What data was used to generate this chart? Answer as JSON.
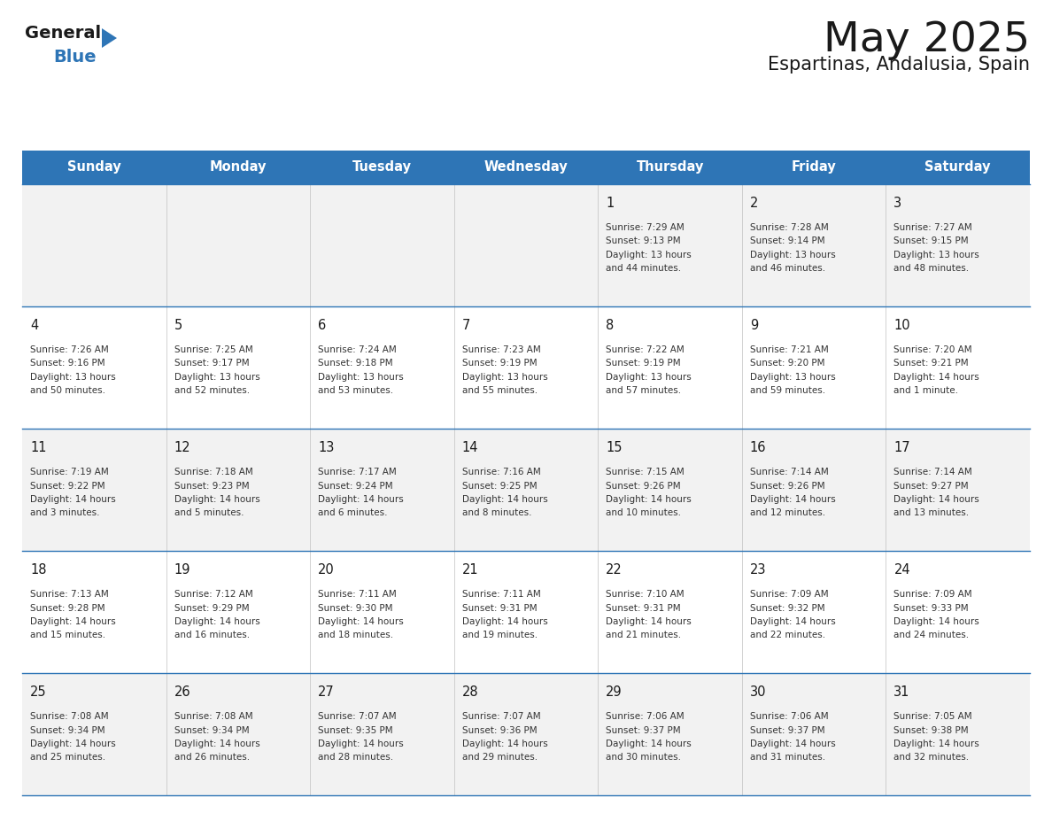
{
  "title": "May 2025",
  "subtitle": "Espartinas, Andalusia, Spain",
  "header_bg": "#2E75B6",
  "header_text": "#FFFFFF",
  "header_days": [
    "Sunday",
    "Monday",
    "Tuesday",
    "Wednesday",
    "Thursday",
    "Friday",
    "Saturday"
  ],
  "row_bg_even": "#F2F2F2",
  "row_bg_odd": "#FFFFFF",
  "cell_border": "#CCCCCC",
  "day_number_color": "#1a1a1a",
  "info_text_color": "#333333",
  "calendar_data": [
    [
      null,
      null,
      null,
      null,
      {
        "day": 1,
        "sunrise": "7:29 AM",
        "sunset": "9:13 PM",
        "daylight": "13 hours and 44 minutes."
      },
      {
        "day": 2,
        "sunrise": "7:28 AM",
        "sunset": "9:14 PM",
        "daylight": "13 hours and 46 minutes."
      },
      {
        "day": 3,
        "sunrise": "7:27 AM",
        "sunset": "9:15 PM",
        "daylight": "13 hours and 48 minutes."
      }
    ],
    [
      {
        "day": 4,
        "sunrise": "7:26 AM",
        "sunset": "9:16 PM",
        "daylight": "13 hours and 50 minutes."
      },
      {
        "day": 5,
        "sunrise": "7:25 AM",
        "sunset": "9:17 PM",
        "daylight": "13 hours and 52 minutes."
      },
      {
        "day": 6,
        "sunrise": "7:24 AM",
        "sunset": "9:18 PM",
        "daylight": "13 hours and 53 minutes."
      },
      {
        "day": 7,
        "sunrise": "7:23 AM",
        "sunset": "9:19 PM",
        "daylight": "13 hours and 55 minutes."
      },
      {
        "day": 8,
        "sunrise": "7:22 AM",
        "sunset": "9:19 PM",
        "daylight": "13 hours and 57 minutes."
      },
      {
        "day": 9,
        "sunrise": "7:21 AM",
        "sunset": "9:20 PM",
        "daylight": "13 hours and 59 minutes."
      },
      {
        "day": 10,
        "sunrise": "7:20 AM",
        "sunset": "9:21 PM",
        "daylight": "14 hours and 1 minute."
      }
    ],
    [
      {
        "day": 11,
        "sunrise": "7:19 AM",
        "sunset": "9:22 PM",
        "daylight": "14 hours and 3 minutes."
      },
      {
        "day": 12,
        "sunrise": "7:18 AM",
        "sunset": "9:23 PM",
        "daylight": "14 hours and 5 minutes."
      },
      {
        "day": 13,
        "sunrise": "7:17 AM",
        "sunset": "9:24 PM",
        "daylight": "14 hours and 6 minutes."
      },
      {
        "day": 14,
        "sunrise": "7:16 AM",
        "sunset": "9:25 PM",
        "daylight": "14 hours and 8 minutes."
      },
      {
        "day": 15,
        "sunrise": "7:15 AM",
        "sunset": "9:26 PM",
        "daylight": "14 hours and 10 minutes."
      },
      {
        "day": 16,
        "sunrise": "7:14 AM",
        "sunset": "9:26 PM",
        "daylight": "14 hours and 12 minutes."
      },
      {
        "day": 17,
        "sunrise": "7:14 AM",
        "sunset": "9:27 PM",
        "daylight": "14 hours and 13 minutes."
      }
    ],
    [
      {
        "day": 18,
        "sunrise": "7:13 AM",
        "sunset": "9:28 PM",
        "daylight": "14 hours and 15 minutes."
      },
      {
        "day": 19,
        "sunrise": "7:12 AM",
        "sunset": "9:29 PM",
        "daylight": "14 hours and 16 minutes."
      },
      {
        "day": 20,
        "sunrise": "7:11 AM",
        "sunset": "9:30 PM",
        "daylight": "14 hours and 18 minutes."
      },
      {
        "day": 21,
        "sunrise": "7:11 AM",
        "sunset": "9:31 PM",
        "daylight": "14 hours and 19 minutes."
      },
      {
        "day": 22,
        "sunrise": "7:10 AM",
        "sunset": "9:31 PM",
        "daylight": "14 hours and 21 minutes."
      },
      {
        "day": 23,
        "sunrise": "7:09 AM",
        "sunset": "9:32 PM",
        "daylight": "14 hours and 22 minutes."
      },
      {
        "day": 24,
        "sunrise": "7:09 AM",
        "sunset": "9:33 PM",
        "daylight": "14 hours and 24 minutes."
      }
    ],
    [
      {
        "day": 25,
        "sunrise": "7:08 AM",
        "sunset": "9:34 PM",
        "daylight": "14 hours and 25 minutes."
      },
      {
        "day": 26,
        "sunrise": "7:08 AM",
        "sunset": "9:34 PM",
        "daylight": "14 hours and 26 minutes."
      },
      {
        "day": 27,
        "sunrise": "7:07 AM",
        "sunset": "9:35 PM",
        "daylight": "14 hours and 28 minutes."
      },
      {
        "day": 28,
        "sunrise": "7:07 AM",
        "sunset": "9:36 PM",
        "daylight": "14 hours and 29 minutes."
      },
      {
        "day": 29,
        "sunrise": "7:06 AM",
        "sunset": "9:37 PM",
        "daylight": "14 hours and 30 minutes."
      },
      {
        "day": 30,
        "sunrise": "7:06 AM",
        "sunset": "9:37 PM",
        "daylight": "14 hours and 31 minutes."
      },
      {
        "day": 31,
        "sunrise": "7:05 AM",
        "sunset": "9:38 PM",
        "daylight": "14 hours and 32 minutes."
      }
    ]
  ],
  "logo_text_general": "General",
  "logo_text_blue": "Blue",
  "logo_color_general": "#1a1a1a",
  "logo_color_blue": "#2E75B6",
  "logo_triangle_color": "#2E75B6",
  "fig_width": 11.88,
  "fig_height": 9.18,
  "dpi": 100
}
